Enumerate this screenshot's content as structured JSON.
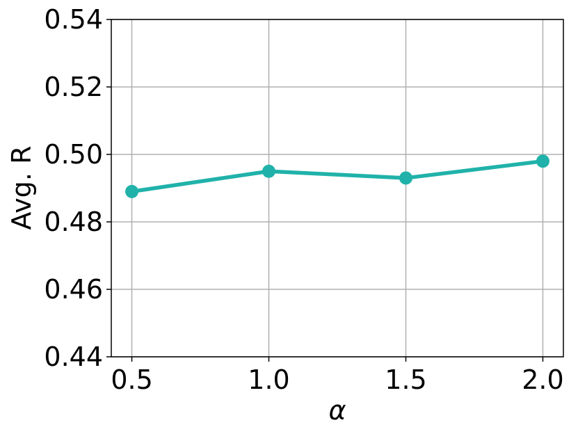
{
  "chart_data": {
    "type": "line",
    "xlabel": "α",
    "ylabel": "Avg. R",
    "x": [
      0.5,
      1.0,
      1.5,
      2.0
    ],
    "values": [
      0.489,
      0.495,
      0.493,
      0.498
    ],
    "color": "#20b2aa",
    "xlim": [
      0.425,
      2.075
    ],
    "xticks": [
      0.5,
      {
        "value": 1,
        "label": "1.0"
      },
      1.5,
      {
        "value": 2,
        "label": "2.0"
      }
    ],
    "ylim": [
      0.44,
      0.54
    ],
    "yticks": [
      0.44,
      0.46,
      0.48,
      {
        "value": 0.5,
        "label": "0.50"
      },
      0.52,
      0.54
    ],
    "grid": true
  }
}
